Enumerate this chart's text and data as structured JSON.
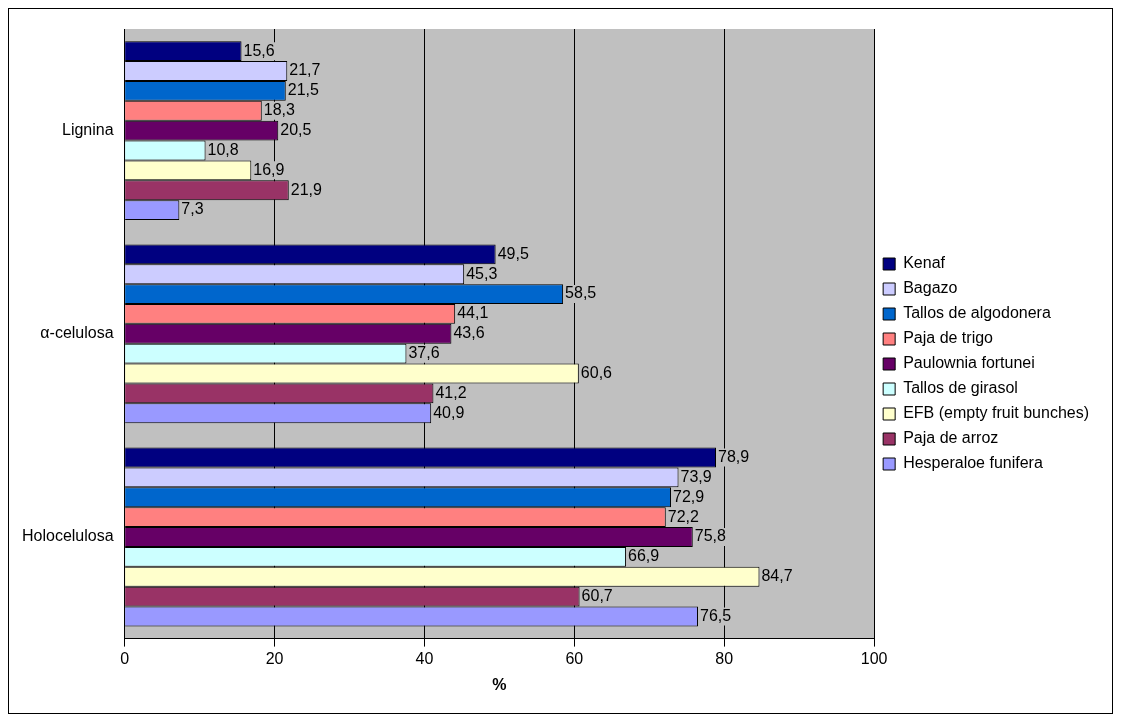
{
  "chart_data": {
    "type": "bar",
    "orientation": "horizontal",
    "xlabel": "%",
    "categories": [
      "Lignina",
      "α-celulosa",
      "Holocelulosa"
    ],
    "xlim": [
      0,
      100
    ],
    "xticks": [
      0,
      20,
      40,
      60,
      80,
      100
    ],
    "grid": "x",
    "legend": "right",
    "series": [
      {
        "name": "Kenaf",
        "color": "#000080",
        "values": [
          15.6,
          49.5,
          78.9
        ],
        "value_labels": [
          "15,6",
          "49,5",
          "78,9"
        ]
      },
      {
        "name": "Bagazo",
        "color": "#ccccff",
        "values": [
          21.7,
          45.3,
          73.9
        ],
        "value_labels": [
          "21,7",
          "45,3",
          "73,9"
        ]
      },
      {
        "name": "Tallos de algodonera",
        "color": "#0066cc",
        "values": [
          21.5,
          58.5,
          72.9
        ],
        "value_labels": [
          "21,5",
          "58,5",
          "72,9"
        ]
      },
      {
        "name": "Paja de trigo",
        "color": "#ff8080",
        "values": [
          18.3,
          44.1,
          72.2
        ],
        "value_labels": [
          "18,3",
          "44,1",
          "72,2"
        ]
      },
      {
        "name": "Paulownia fortunei",
        "color": "#660066",
        "values": [
          20.5,
          43.6,
          75.8
        ],
        "value_labels": [
          "20,5",
          "43,6",
          "75,8"
        ]
      },
      {
        "name": "Tallos de girasol",
        "color": "#ccffff",
        "values": [
          10.8,
          37.6,
          66.9
        ],
        "value_labels": [
          "10,8",
          "37,6",
          "66,9"
        ]
      },
      {
        "name": "EFB (empty fruit bunches)",
        "color": "#ffffcc",
        "values": [
          16.9,
          60.6,
          84.7
        ],
        "value_labels": [
          "16,9",
          "60,6",
          "84,7"
        ]
      },
      {
        "name": "Paja de arroz",
        "color": "#993366",
        "values": [
          21.9,
          41.2,
          60.7
        ],
        "value_labels": [
          "21,9",
          "41,2",
          "60,7"
        ]
      },
      {
        "name": "Hesperaloe funifera",
        "color": "#9999ff",
        "values": [
          7.3,
          40.9,
          76.5
        ],
        "value_labels": [
          "7,3",
          "40,9",
          "76,5"
        ]
      }
    ]
  }
}
